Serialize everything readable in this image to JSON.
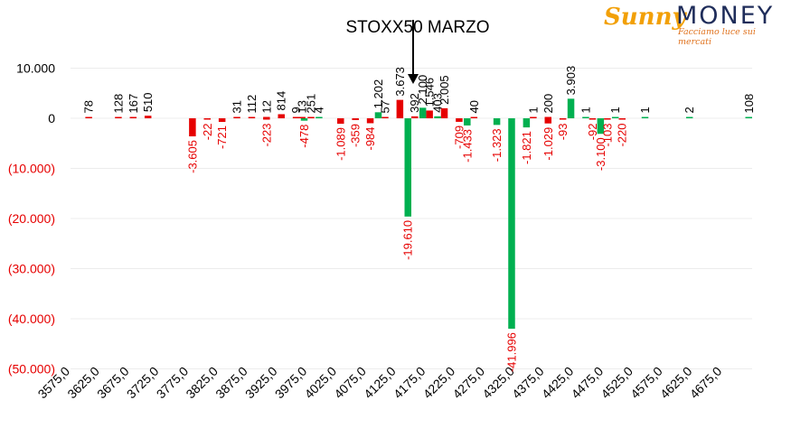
{
  "logo": {
    "brand_part1": "Sunny",
    "brand_part2": "MONEY",
    "tagline": "Facciamo luce sui mercati"
  },
  "colors": {
    "positive": "#e60000",
    "negative": "#00b050",
    "neg_axis_text": "#e60000",
    "text": "#000000"
  },
  "chart_data": {
    "type": "bar",
    "title": "STOXX50 MARZO",
    "xlabel": "",
    "ylabel": "",
    "ylim": [
      -50000,
      10000
    ],
    "yticks": [
      10000,
      0,
      -10000,
      -20000,
      -30000,
      -40000,
      -50000
    ],
    "ytick_labels": [
      "10.000",
      "0",
      "(10.000)",
      "(20.000)",
      "(30.000)",
      "(40.000)",
      "(50.000)"
    ],
    "xtick_labels": [
      "3575,0",
      "3625,0",
      "3675,0",
      "3725,0",
      "3775,0",
      "3825,0",
      "3875,0",
      "3925,0",
      "3975,0",
      "4025,0",
      "4075,0",
      "4125,0",
      "4175,0",
      "4225,0",
      "4275,0",
      "4325,0",
      "4375,0",
      "4425,0",
      "4475,0",
      "4525,0",
      "4575,0",
      "4625,0",
      "4675,0"
    ],
    "grid": true,
    "annotation": {
      "text": "",
      "strike": 4150
    },
    "series": [
      {
        "color": "#e60000",
        "points": [
          {
            "strike": 3600,
            "value": 78,
            "label": "78"
          },
          {
            "strike": 3650,
            "value": 128,
            "label": "128"
          },
          {
            "strike": 3675,
            "value": 167,
            "label": "167"
          },
          {
            "strike": 3700,
            "value": 510,
            "label": "510"
          },
          {
            "strike": 3775,
            "value": -3605,
            "label": "-3.605"
          },
          {
            "strike": 3800,
            "value": -22,
            "label": "-22"
          },
          {
            "strike": 3825,
            "value": -721,
            "label": "-721"
          },
          {
            "strike": 3850,
            "value": 31,
            "label": "31"
          },
          {
            "strike": 3875,
            "value": 112,
            "label": "112"
          },
          {
            "strike": 3900,
            "value": 12,
            "label": "12"
          },
          {
            "strike": 3900,
            "value": -223,
            "label": "-223"
          },
          {
            "strike": 3925,
            "value": 814,
            "label": "814"
          },
          {
            "strike": 3950,
            "value": 9,
            "label": "9"
          },
          {
            "strike": 3960,
            "value": 13,
            "label": "13"
          },
          {
            "strike": 3975,
            "value": 251,
            "label": "251"
          },
          {
            "strike": 4025,
            "value": -1089,
            "label": "-1.089"
          },
          {
            "strike": 4050,
            "value": -359,
            "label": "-359"
          },
          {
            "strike": 4075,
            "value": -984,
            "label": "-984"
          },
          {
            "strike": 4100,
            "value": 57,
            "label": "57"
          },
          {
            "strike": 4125,
            "value": 3673,
            "label": "3.673"
          },
          {
            "strike": 4150,
            "value": 392,
            "label": "392"
          },
          {
            "strike": 4175,
            "value": 1546,
            "label": "1.546"
          },
          {
            "strike": 4200,
            "value": 2005,
            "label": "2.005"
          },
          {
            "strike": 4225,
            "value": -709,
            "label": "-709"
          },
          {
            "strike": 4250,
            "value": 40,
            "label": "40"
          },
          {
            "strike": 4350,
            "value": 1,
            "label": "1"
          },
          {
            "strike": 4375,
            "value": 200,
            "label": "200"
          },
          {
            "strike": 4375,
            "value": -1029,
            "label": "-1.029"
          },
          {
            "strike": 4400,
            "value": -93,
            "label": "-93"
          },
          {
            "strike": 4450,
            "value": -92,
            "label": "-92"
          },
          {
            "strike": 4475,
            "value": -103,
            "label": "-103"
          },
          {
            "strike": 4500,
            "value": -220,
            "label": "-220"
          }
        ]
      },
      {
        "color": "#00b050",
        "points": [
          {
            "strike": 3975,
            "value": -478,
            "label": "-478"
          },
          {
            "strike": 4000,
            "value": 4,
            "label": "4"
          },
          {
            "strike": 4100,
            "value": 1202,
            "label": "1.202"
          },
          {
            "strike": 4150,
            "value": -19610,
            "label": "-19.610"
          },
          {
            "strike": 4175,
            "value": 2100,
            "label": "2.100"
          },
          {
            "strike": 4200,
            "value": 403,
            "label": "403"
          },
          {
            "strike": 4250,
            "value": -1433,
            "label": "-1.433"
          },
          {
            "strike": 4300,
            "value": -1323,
            "label": "-1.323"
          },
          {
            "strike": 4325,
            "value": -41996,
            "label": "-41.996"
          },
          {
            "strike": 4350,
            "value": -1821,
            "label": "-1.821"
          },
          {
            "strike": 4425,
            "value": 3903,
            "label": "3.903"
          },
          {
            "strike": 4450,
            "value": 1,
            "label": "1"
          },
          {
            "strike": 4475,
            "value": -3100,
            "label": "-3.100"
          },
          {
            "strike": 4500,
            "value": 1,
            "label": "1"
          },
          {
            "strike": 4550,
            "value": 1,
            "label": "1"
          },
          {
            "strike": 4625,
            "value": 2,
            "label": "2"
          },
          {
            "strike": 4725,
            "value": 108,
            "label": "108"
          }
        ]
      }
    ]
  }
}
